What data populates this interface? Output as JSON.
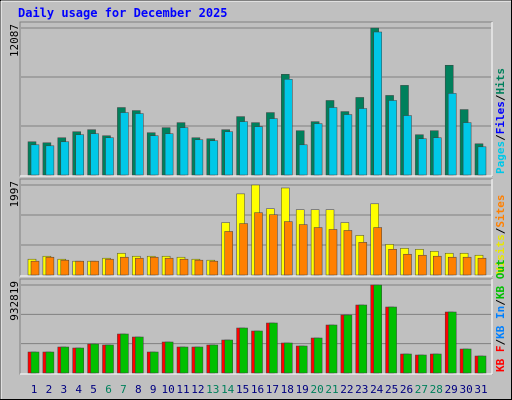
{
  "chart_data": {
    "type": "bar",
    "title": "Daily usage for December 2025",
    "categories": [
      "1",
      "2",
      "3",
      "4",
      "5",
      "6",
      "7",
      "8",
      "9",
      "10",
      "11",
      "12",
      "13",
      "14",
      "15",
      "16",
      "17",
      "18",
      "19",
      "20",
      "21",
      "22",
      "23",
      "24",
      "25",
      "26",
      "27",
      "28",
      "29",
      "30",
      "31"
    ],
    "weekend_color": "#00805c",
    "label_color": "#000080",
    "weekends": [
      "6",
      "7",
      "13",
      "14",
      "20",
      "21",
      "27",
      "28"
    ],
    "panels": [
      {
        "ylim": [
          0,
          12087
        ],
        "yticks": [
          12087
        ],
        "legend": [
          {
            "name": "Pages",
            "color": "#00c8e8"
          },
          {
            "name": "Files",
            "color": "#0000ff"
          },
          {
            "name": "Hits",
            "color": "#00805c"
          }
        ],
        "series": [
          {
            "name": "Hits",
            "color": "#00805c",
            "values": [
              2732,
              2650,
              3064,
              3560,
              3726,
              3229,
              5548,
              5299,
              3478,
              3892,
              4306,
              3064,
              2981,
              3726,
              4802,
              4306,
              5134,
              8280,
              3643,
              4388,
              6127,
              5216,
              6376,
              12087,
              6541,
              7369,
              3312,
              3643,
              9025,
              5382,
              2567
            ]
          },
          {
            "name": "Pages",
            "color": "#00c8e8",
            "values": [
              2484,
              2401,
              2732,
              3312,
              3395,
              3064,
              5134,
              5051,
              3229,
              3395,
              3892,
              2898,
              2815,
              3560,
              4388,
              3974,
              4637,
              7866,
              2484,
              4223,
              5548,
              4968,
              5465,
              11758,
              6127,
              4885,
              2981,
              3064,
              6707,
              4306,
              2318
            ]
          }
        ]
      },
      {
        "ylim": [
          0,
          1997
        ],
        "yticks": [
          1997
        ],
        "legend": [
          {
            "name": "Visits",
            "color": "#e8e800"
          },
          {
            "name": "Sites",
            "color": "#ff8000"
          }
        ],
        "series": [
          {
            "name": "Visits",
            "color": "#ffff00",
            "values": [
              351,
              417,
              351,
              307,
              307,
              373,
              483,
              417,
              417,
              417,
              395,
              351,
              329,
              1163,
              1800,
              1997,
              1470,
              1931,
              1448,
              1448,
              1448,
              1163,
              878,
              1580,
              680,
              593,
              571,
              527,
              483,
              483,
              439
            ]
          },
          {
            "name": "Sites",
            "color": "#ff8000",
            "values": [
              307,
              395,
              329,
              307,
              307,
              351,
              395,
              373,
              395,
              373,
              351,
              329,
              307,
              966,
              1141,
              1383,
              1339,
              1185,
              1119,
              1053,
              1010,
              988,
              724,
              1053,
              571,
              461,
              439,
              417,
              395,
              395,
              373
            ]
          }
        ]
      },
      {
        "ylim": [
          0,
          932819
        ],
        "yticks": [
          932819
        ],
        "legend": [
          {
            "name": "KB F",
            "color": "#ff0000"
          },
          {
            "name": "KB In",
            "color": "#0080ff"
          },
          {
            "name": "KB Out",
            "color": "#00c000"
          }
        ],
        "series": [
          {
            "name": "KB F",
            "color": "#ff0000",
            "values": [
              222600,
              222600,
              275600,
              265000,
              307400,
              296800,
              413400,
              381600,
              222600,
              328600,
              275600,
              275600,
              296800,
              349800,
              477000,
              445200,
              530000,
              318000,
              286200,
              371000,
              508800,
              614800,
              720800,
              932819,
              699600,
              201400,
              190800,
              201400,
              646600,
              254400,
              180200
            ]
          },
          {
            "name": "KB Out",
            "color": "#00c000",
            "values": [
              222600,
              222600,
              275600,
              265000,
              307400,
              296800,
              413400,
              381600,
              222600,
              328600,
              275600,
              275600,
              296800,
              349800,
              477000,
              445200,
              530000,
              318000,
              286200,
              371000,
              508800,
              614800,
              720800,
              932819,
              699600,
              201400,
              190800,
              201400,
              646600,
              254400,
              180200
            ]
          }
        ]
      }
    ]
  }
}
